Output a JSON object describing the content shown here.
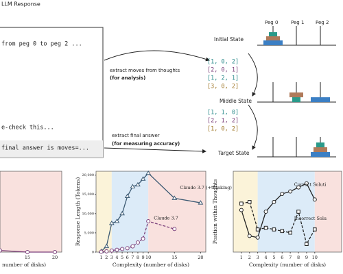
{
  "diagram": {
    "box_title": "LLM Response",
    "response_lines": [
      "from peg 0 to peg 2 ...",
      "e-check this...",
      "final answer is moves=..."
    ],
    "arrow_top": {
      "label": "extract moves  from thoughts",
      "sub": "(for analysis)"
    },
    "arrow_bottom": {
      "label": "extract final answer",
      "sub": "(for measuring accuracy)"
    },
    "moves_a": [
      "[1, 0, 2]",
      "[2, 0, 1]",
      "[1, 2, 1]",
      "[3, 0, 2]"
    ],
    "moves_b": [
      "[1, 1, 0]",
      "[2, 1, 2]",
      "[1, 0, 2]"
    ],
    "states": [
      "Initial State",
      "Middle State",
      "Target State"
    ],
    "pegs": [
      "Peg 0",
      "Peg 1",
      "Peg 2"
    ]
  },
  "chart_data": [
    {
      "type": "line",
      "xlabel": "number of disks)",
      "xlim": [
        10,
        21.25
      ],
      "ylim": [
        0,
        100
      ],
      "xticks": [
        15,
        20
      ],
      "regions": [
        {
          "from": 10,
          "to": 21.25,
          "color": "#f9e1de"
        }
      ],
      "x": [
        10,
        15,
        20
      ],
      "series": [
        {
          "color": "#7b3f7a",
          "marker": "circle",
          "dash": false,
          "values": [
            2,
            0,
            0
          ]
        }
      ]
    },
    {
      "type": "line",
      "xlabel": "Complexity (number of disks)",
      "ylabel": "Response Length (Tokens)",
      "xlim": [
        0,
        21
      ],
      "ylim": [
        0,
        21000
      ],
      "xticks": [
        1,
        2,
        3,
        4,
        5,
        6,
        7,
        8,
        9,
        10,
        15,
        20
      ],
      "yticks": [
        0,
        {
          "value": 5000,
          "label": "5,000"
        },
        {
          "value": 10000,
          "label": "10,000"
        },
        {
          "value": 15000,
          "label": "15,000"
        },
        {
          "value": 20000,
          "label": "20,000"
        }
      ],
      "regions": [
        {
          "from": 0,
          "to": 3,
          "color": "#fbf3d9"
        },
        {
          "from": 3,
          "to": 10,
          "color": "#dcebf8"
        },
        {
          "from": 10,
          "to": 21,
          "color": "#f9e1de"
        }
      ],
      "x": [
        1,
        2,
        3,
        4,
        5,
        6,
        7,
        8,
        9,
        10,
        15,
        20
      ],
      "series": [
        {
          "name": "Claude 3.7 (+thinking)",
          "color": "#3c5a73",
          "marker": "triangle",
          "dash": false,
          "values": [
            200,
            1500,
            7500,
            8000,
            10000,
            14500,
            17000,
            17500,
            19000,
            20500,
            14000,
            12800
          ]
        },
        {
          "name": "Claude 3.7",
          "color": "#7b3f7a",
          "marker": "circle",
          "dash": true,
          "values": [
            100,
            200,
            400,
            600,
            800,
            1000,
            1500,
            2500,
            3500,
            8000,
            6000,
            null
          ]
        }
      ]
    },
    {
      "type": "line",
      "xlabel": "Complexity (number of disks)",
      "ylabel": "Position within Thoughts",
      "xlim": [
        0,
        13.3
      ],
      "ylim": [
        0,
        1
      ],
      "xticks": [
        1,
        2,
        3,
        4,
        5,
        6,
        7,
        8,
        9,
        10
      ],
      "regions": [
        {
          "from": 0,
          "to": 3,
          "color": "#fbf3d9"
        },
        {
          "from": 3,
          "to": 10,
          "color": "#dcebf8"
        },
        {
          "from": 10,
          "to": 13.3,
          "color": "#f9e1de"
        }
      ],
      "x": [
        1,
        2,
        3,
        4,
        5,
        6,
        7,
        8,
        9,
        10
      ],
      "series": [
        {
          "name": "Correct Soluti",
          "color": "#222222",
          "marker": "circle",
          "dash": false,
          "values": [
            0.52,
            0.2,
            0.18,
            0.5,
            0.62,
            0.72,
            0.75,
            0.8,
            0.85,
            0.65
          ]
        },
        {
          "name": "Incorrect Solu",
          "color": "#222222",
          "marker": "square",
          "dash": true,
          "values": [
            0.6,
            0.62,
            0.28,
            0.3,
            0.28,
            0.26,
            0.24,
            0.5,
            0.1,
            0.28
          ]
        }
      ]
    }
  ]
}
